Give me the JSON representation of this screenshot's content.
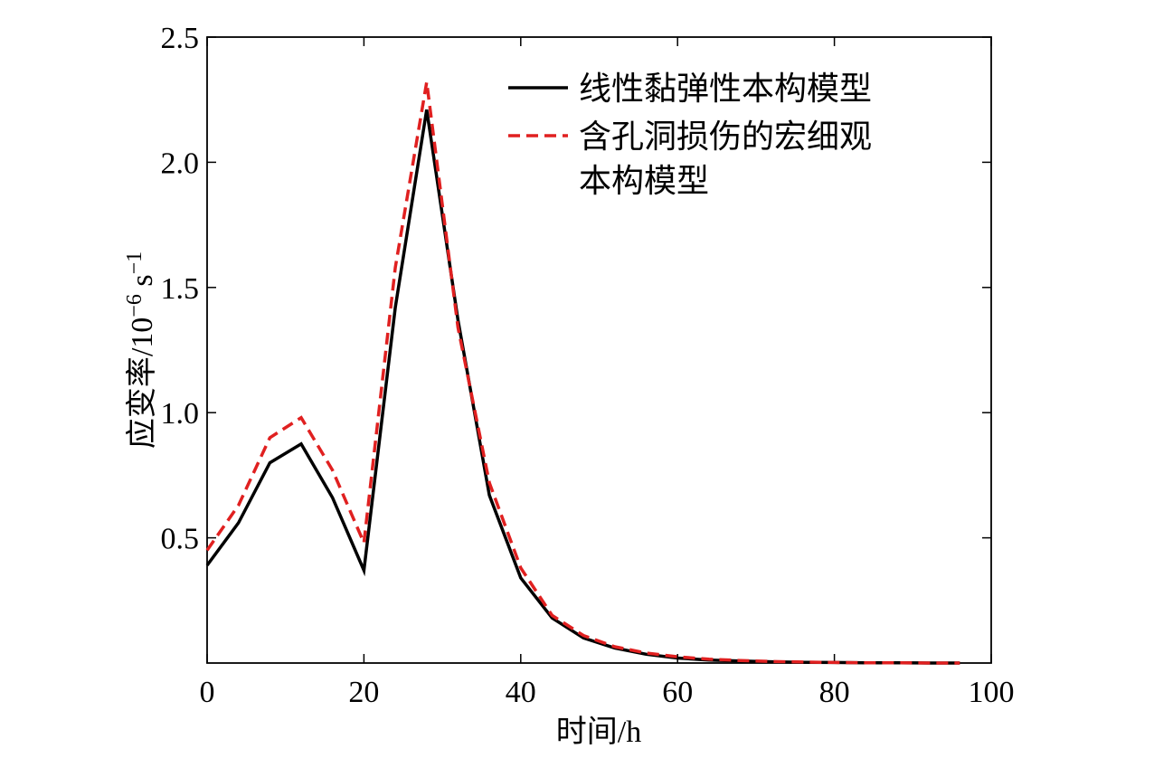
{
  "chart_data": {
    "type": "line",
    "xlabel": "时间/h",
    "ylabel_main": "应变率/10",
    "ylabel_exp1": "−6",
    "ylabel_unit": " s",
    "ylabel_exp2": "−1",
    "xlim": [
      0,
      100
    ],
    "ylim": [
      0,
      2.5
    ],
    "x_ticks": [
      0,
      20,
      40,
      60,
      80,
      100
    ],
    "x_tick_labels": [
      "0",
      "20",
      "40",
      "60",
      "80",
      "100"
    ],
    "y_ticks": [
      0.5,
      1.0,
      1.5,
      2.0,
      2.5
    ],
    "y_tick_labels": [
      "0.5",
      "1.0",
      "1.5",
      "2.0",
      "2.5"
    ],
    "grid": false,
    "legend_position": "top-right",
    "legend": {
      "entry1": "线性黏弹性本构模型",
      "entry2_line1": "含孔洞损伤的宏细观",
      "entry2_line2": "本构模型"
    },
    "series": [
      {
        "name": "线性黏弹性本构模型",
        "color": "#000000",
        "style": "solid",
        "x": [
          0,
          4,
          8,
          12,
          16,
          20,
          24,
          28,
          32,
          36,
          40,
          44,
          48,
          52,
          56,
          60,
          64,
          68,
          72,
          76,
          80,
          84,
          88,
          92,
          96
        ],
        "y": [
          0.39,
          0.56,
          0.8,
          0.875,
          0.66,
          0.37,
          1.42,
          2.21,
          1.37,
          0.67,
          0.34,
          0.18,
          0.1,
          0.06,
          0.035,
          0.02,
          0.012,
          0.008,
          0.005,
          0.003,
          0.002,
          0.001,
          0.001,
          0.0,
          0.0
        ]
      },
      {
        "name": "含孔洞损伤的宏细观本构模型",
        "color": "#e02020",
        "style": "dashed",
        "x": [
          0,
          4,
          8,
          12,
          16,
          20,
          24,
          28,
          32,
          36,
          40,
          44,
          48,
          52,
          56,
          60,
          64,
          68,
          72,
          76,
          80,
          84,
          88,
          92,
          96
        ],
        "y": [
          0.45,
          0.63,
          0.9,
          0.98,
          0.77,
          0.48,
          1.58,
          2.32,
          1.34,
          0.72,
          0.38,
          0.19,
          0.11,
          0.065,
          0.04,
          0.025,
          0.015,
          0.01,
          0.006,
          0.004,
          0.002,
          0.001,
          0.001,
          0.0,
          0.0
        ]
      }
    ]
  }
}
